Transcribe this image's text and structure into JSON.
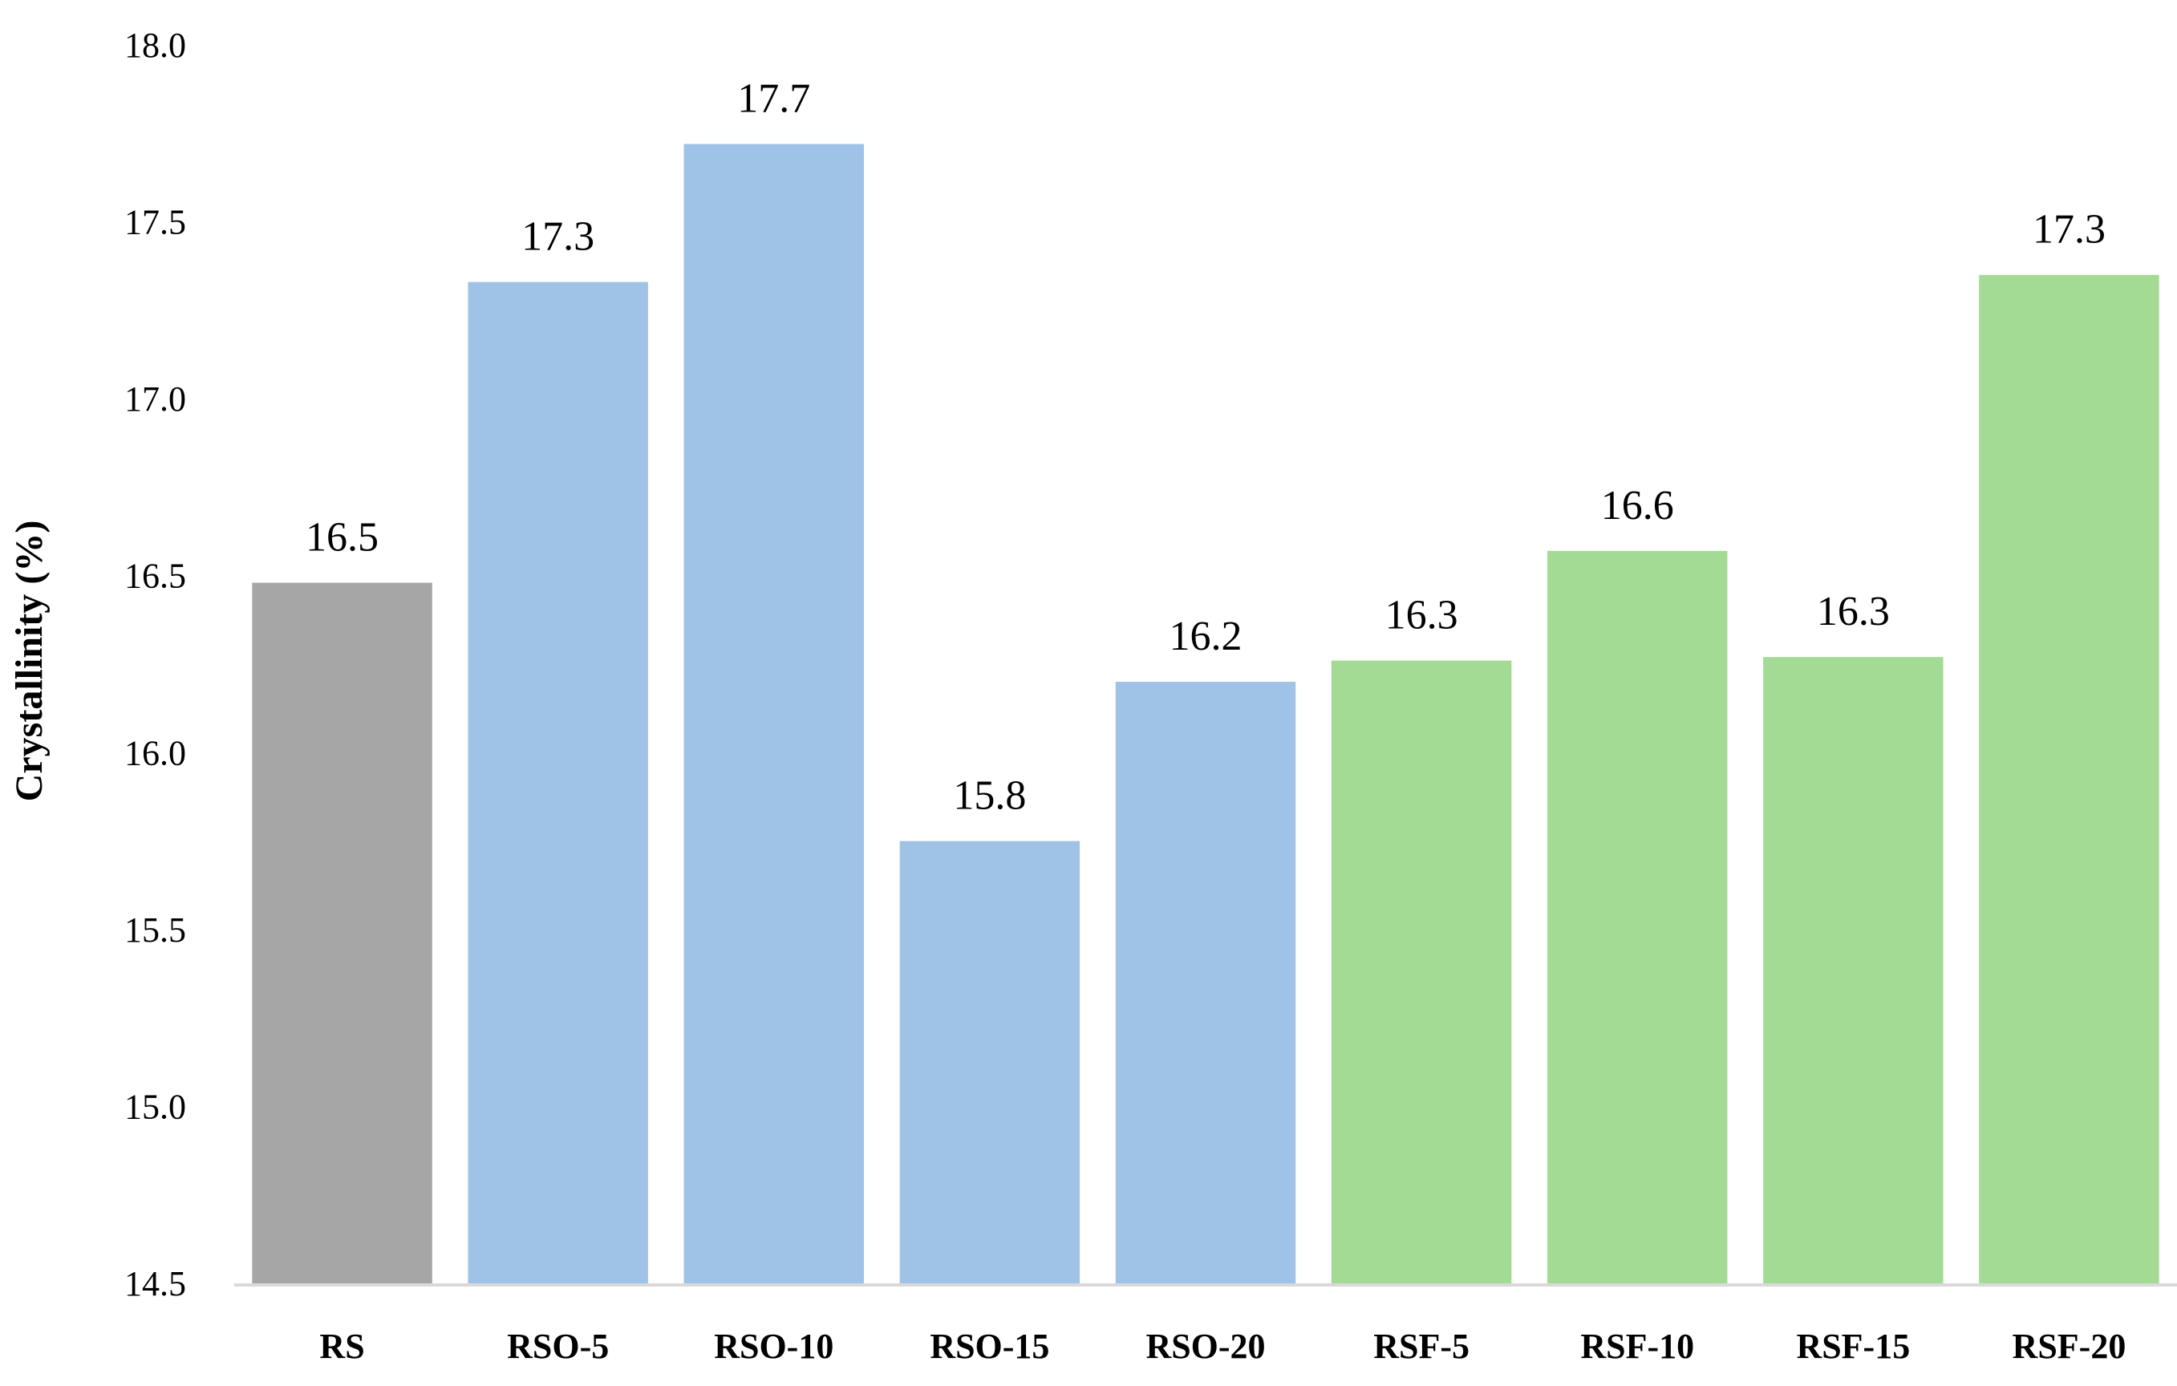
{
  "chart_data": {
    "type": "bar",
    "title": "",
    "xlabel": "",
    "ylabel": "Crystallinity (%)",
    "ylim": [
      14.5,
      18.0
    ],
    "yticks": [
      "14.5",
      "15.0",
      "15.5",
      "16.0",
      "16.5",
      "17.0",
      "17.5",
      "18.0"
    ],
    "grid": false,
    "legend": "none",
    "categories": [
      "RS",
      "RSO-5",
      "RSO-10",
      "RSO-15",
      "RSO-20",
      "RSF-5",
      "RSF-10",
      "RSF-15",
      "RSF-20"
    ],
    "values": [
      16.48,
      17.33,
      17.72,
      15.75,
      16.2,
      16.26,
      16.57,
      16.27,
      17.35
    ],
    "data_labels": [
      "16.5",
      "17.3",
      "17.7",
      "15.8",
      "16.2",
      "16.3",
      "16.6",
      "16.3",
      "17.3"
    ],
    "colors": [
      "#a6a6a6",
      "#9fc3e6",
      "#9fc3e6",
      "#9fc3e6",
      "#9fc3e6",
      "#a3db95",
      "#a3db95",
      "#a3db95",
      "#a3db95"
    ],
    "axis_color": "#d9d9d9"
  }
}
